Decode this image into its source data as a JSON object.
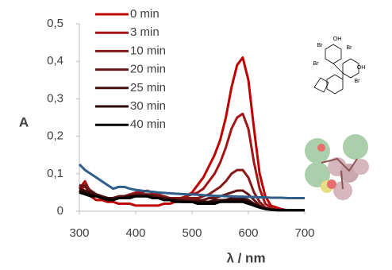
{
  "chart_data": {
    "type": "line",
    "y_label": "A",
    "x_label": "λ / nm",
    "x": [
      300,
      310,
      320,
      330,
      340,
      350,
      360,
      370,
      380,
      390,
      400,
      410,
      420,
      430,
      440,
      450,
      460,
      470,
      480,
      490,
      500,
      510,
      520,
      530,
      540,
      550,
      560,
      570,
      580,
      590,
      600,
      610,
      620,
      630,
      640,
      650,
      660,
      670,
      680,
      690,
      700
    ],
    "series": [
      {
        "name": "0 min",
        "color": "#c00000",
        "values": [
          0.05,
          0.07,
          0.04,
          0.03,
          0.03,
          0.025,
          0.025,
          0.02,
          0.02,
          0.02,
          0.015,
          0.015,
          0.015,
          0.015,
          0.015,
          0.02,
          0.02,
          0.025,
          0.03,
          0.04,
          0.05,
          0.07,
          0.09,
          0.12,
          0.15,
          0.19,
          0.25,
          0.33,
          0.39,
          0.41,
          0.35,
          0.22,
          0.1,
          0.04,
          0.015,
          0.01,
          0.005,
          0.003,
          0.003,
          0.003,
          0.003
        ]
      },
      {
        "name": "3 min",
        "color": "#a51414",
        "values": [
          0.06,
          0.08,
          0.05,
          0.04,
          0.035,
          0.03,
          0.03,
          0.035,
          0.04,
          0.045,
          0.05,
          0.05,
          0.055,
          0.05,
          0.045,
          0.04,
          0.035,
          0.035,
          0.035,
          0.04,
          0.045,
          0.05,
          0.06,
          0.08,
          0.1,
          0.13,
          0.17,
          0.22,
          0.25,
          0.26,
          0.22,
          0.13,
          0.06,
          0.02,
          0.01,
          0.005,
          0.003,
          0.003,
          0.003,
          0.003,
          0.003
        ]
      },
      {
        "name": "10 min",
        "color": "#861818",
        "values": [
          0.065,
          0.07,
          0.055,
          0.045,
          0.04,
          0.035,
          0.035,
          0.04,
          0.04,
          0.045,
          0.045,
          0.045,
          0.045,
          0.045,
          0.04,
          0.04,
          0.035,
          0.035,
          0.035,
          0.035,
          0.035,
          0.035,
          0.04,
          0.045,
          0.055,
          0.065,
          0.08,
          0.1,
          0.11,
          0.11,
          0.09,
          0.05,
          0.025,
          0.01,
          0.005,
          0.003,
          0.003,
          0.003,
          0.003,
          0.003,
          0.003
        ]
      },
      {
        "name": "20 min",
        "color": "#651616",
        "values": [
          0.07,
          0.065,
          0.055,
          0.045,
          0.04,
          0.035,
          0.035,
          0.04,
          0.04,
          0.04,
          0.045,
          0.045,
          0.045,
          0.04,
          0.04,
          0.035,
          0.035,
          0.03,
          0.03,
          0.03,
          0.03,
          0.03,
          0.03,
          0.035,
          0.035,
          0.04,
          0.045,
          0.05,
          0.055,
          0.055,
          0.045,
          0.03,
          0.015,
          0.008,
          0.005,
          0.003,
          0.003,
          0.003,
          0.003,
          0.003,
          0.003
        ]
      },
      {
        "name": "25 min",
        "color": "#451010",
        "values": [
          0.06,
          0.055,
          0.05,
          0.045,
          0.04,
          0.035,
          0.035,
          0.035,
          0.04,
          0.04,
          0.04,
          0.04,
          0.04,
          0.04,
          0.035,
          0.035,
          0.03,
          0.03,
          0.03,
          0.025,
          0.025,
          0.025,
          0.025,
          0.025,
          0.03,
          0.03,
          0.03,
          0.035,
          0.035,
          0.035,
          0.03,
          0.02,
          0.012,
          0.007,
          0.004,
          0.003,
          0.003,
          0.003,
          0.003,
          0.003,
          0.003
        ]
      },
      {
        "name": "30 min",
        "color": "#260808",
        "values": [
          0.055,
          0.05,
          0.045,
          0.04,
          0.035,
          0.035,
          0.03,
          0.035,
          0.035,
          0.04,
          0.04,
          0.04,
          0.04,
          0.035,
          0.035,
          0.03,
          0.03,
          0.03,
          0.025,
          0.025,
          0.025,
          0.025,
          0.025,
          0.025,
          0.025,
          0.025,
          0.03,
          0.03,
          0.03,
          0.03,
          0.025,
          0.018,
          0.01,
          0.006,
          0.004,
          0.003,
          0.003,
          0.003,
          0.003,
          0.003,
          0.003
        ]
      },
      {
        "name": "40 min",
        "color": "#000000",
        "values": [
          0.05,
          0.045,
          0.04,
          0.04,
          0.035,
          0.03,
          0.03,
          0.035,
          0.035,
          0.035,
          0.04,
          0.04,
          0.04,
          0.035,
          0.035,
          0.03,
          0.03,
          0.025,
          0.025,
          0.025,
          0.025,
          0.02,
          0.02,
          0.02,
          0.02,
          0.025,
          0.025,
          0.025,
          0.025,
          0.025,
          0.02,
          0.015,
          0.01,
          0.006,
          0.004,
          0.003,
          0.003,
          0.003,
          0.003,
          0.003,
          0.003
        ]
      },
      {
        "color": "#2f5d8c",
        "values": [
          0.125,
          0.11,
          0.1,
          0.09,
          0.08,
          0.07,
          0.06,
          0.065,
          0.065,
          0.06,
          0.057,
          0.055,
          0.053,
          0.052,
          0.05,
          0.049,
          0.048,
          0.047,
          0.046,
          0.045,
          0.045,
          0.044,
          0.043,
          0.042,
          0.041,
          0.041,
          0.04,
          0.04,
          0.039,
          0.039,
          0.038,
          0.038,
          0.037,
          0.037,
          0.036,
          0.036,
          0.036,
          0.035,
          0.035,
          0.035,
          0.035
        ]
      }
    ],
    "xlim": [
      300,
      700
    ],
    "xticks": [
      300,
      400,
      500,
      600,
      700
    ],
    "ylim": [
      0,
      0.5
    ],
    "yticks": [
      0,
      {
        "value": 0.1,
        "label": "0,1"
      },
      {
        "value": 0.2,
        "label": "0,2"
      },
      {
        "value": 0.3,
        "label": "0,3"
      },
      {
        "value": 0.4,
        "label": "0,4"
      },
      {
        "value": 0.5,
        "label": "0,5"
      }
    ],
    "grid": false,
    "legend": "upper-left",
    "structure_labels": [
      "Br",
      "OH",
      "Br",
      "OH",
      "Br",
      "Br"
    ]
  }
}
